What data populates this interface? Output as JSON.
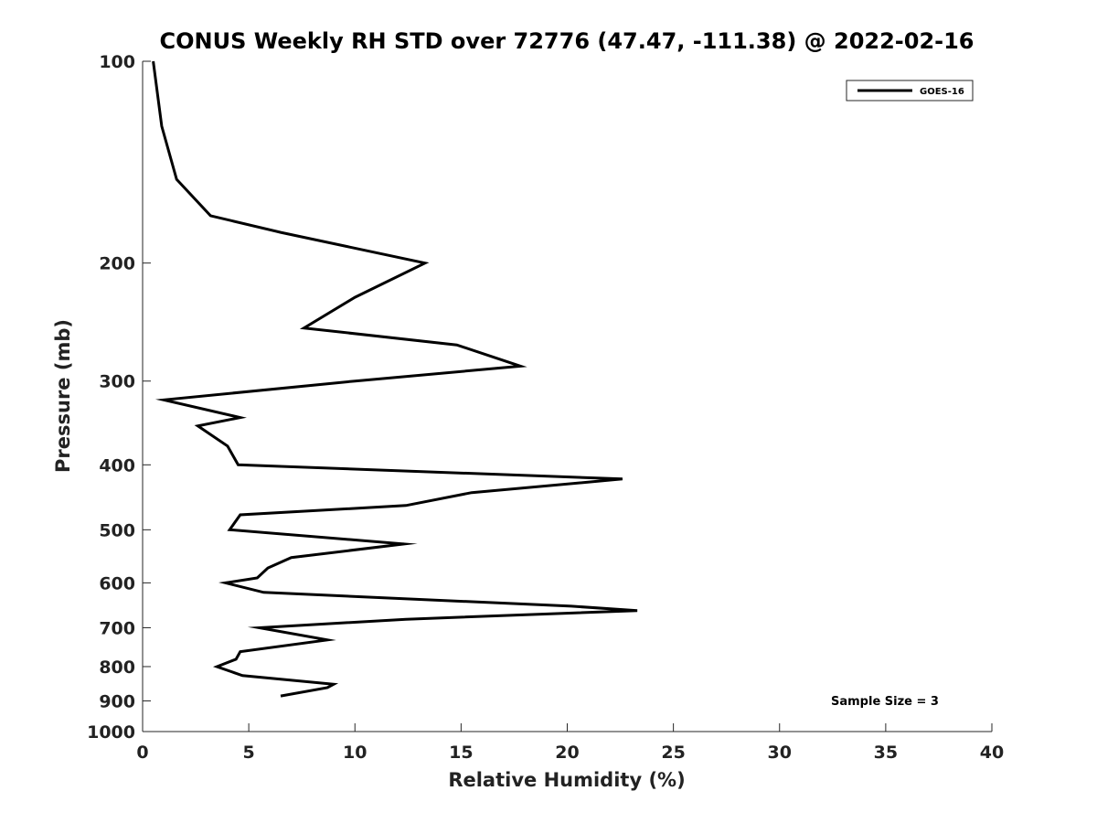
{
  "chart_data": {
    "type": "line",
    "title": "CONUS Weekly RH STD over 72776 (47.47, -111.38) @ 2022-02-16",
    "xlabel": "Relative Humidity (%)",
    "ylabel": "Pressure (mb)",
    "xlim": [
      0,
      40
    ],
    "ylim": [
      100,
      1000
    ],
    "yscale": "log",
    "yreversed": true,
    "xticks": [
      0,
      5,
      10,
      15,
      20,
      25,
      30,
      35,
      40
    ],
    "yticks": [
      100,
      200,
      300,
      400,
      500,
      600,
      700,
      800,
      900,
      1000
    ],
    "grid": false,
    "legend_position": "top-right",
    "annotation": "Sample Size = 3",
    "series": [
      {
        "name": "GOES-16",
        "color": "#000000",
        "points": [
          {
            "x": 0.5,
            "y": 100
          },
          {
            "x": 0.9,
            "y": 125
          },
          {
            "x": 1.6,
            "y": 150
          },
          {
            "x": 3.2,
            "y": 170
          },
          {
            "x": 6.5,
            "y": 180
          },
          {
            "x": 13.3,
            "y": 200
          },
          {
            "x": 10.0,
            "y": 225
          },
          {
            "x": 7.6,
            "y": 250
          },
          {
            "x": 14.8,
            "y": 265
          },
          {
            "x": 17.8,
            "y": 285
          },
          {
            "x": 10.0,
            "y": 300
          },
          {
            "x": 1.0,
            "y": 320
          },
          {
            "x": 4.6,
            "y": 340
          },
          {
            "x": 2.6,
            "y": 350
          },
          {
            "x": 4.0,
            "y": 375
          },
          {
            "x": 4.5,
            "y": 400
          },
          {
            "x": 22.6,
            "y": 420
          },
          {
            "x": 15.5,
            "y": 440
          },
          {
            "x": 12.4,
            "y": 460
          },
          {
            "x": 4.6,
            "y": 475
          },
          {
            "x": 4.1,
            "y": 500
          },
          {
            "x": 12.3,
            "y": 525
          },
          {
            "x": 7.0,
            "y": 550
          },
          {
            "x": 5.9,
            "y": 570
          },
          {
            "x": 5.4,
            "y": 590
          },
          {
            "x": 3.9,
            "y": 600
          },
          {
            "x": 5.7,
            "y": 620
          },
          {
            "x": 20.2,
            "y": 650
          },
          {
            "x": 23.3,
            "y": 660
          },
          {
            "x": 12.4,
            "y": 680
          },
          {
            "x": 5.5,
            "y": 700
          },
          {
            "x": 8.7,
            "y": 730
          },
          {
            "x": 4.6,
            "y": 760
          },
          {
            "x": 4.4,
            "y": 780
          },
          {
            "x": 3.5,
            "y": 800
          },
          {
            "x": 4.7,
            "y": 825
          },
          {
            "x": 9.0,
            "y": 850
          },
          {
            "x": 8.7,
            "y": 860
          },
          {
            "x": 6.5,
            "y": 885
          }
        ]
      }
    ]
  }
}
